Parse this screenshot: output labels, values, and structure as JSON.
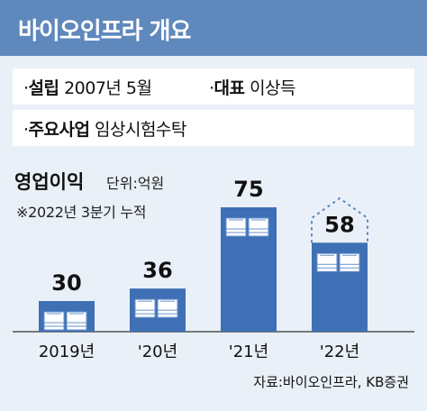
{
  "header": {
    "title": "바이오인프라 개요"
  },
  "info": {
    "founded_key": "설립",
    "founded_value": "2007년 5월",
    "ceo_key": "대표",
    "ceo_value": "이상득",
    "business_key": "주요사업",
    "business_value": "임상시험수탁"
  },
  "chart_data": {
    "type": "bar",
    "title": "영업이익",
    "unit": "단위:억원",
    "note": "※2022년 3분기 누적",
    "categories": [
      "2019년",
      "'20년",
      "'21년",
      "'22년"
    ],
    "values": [
      30,
      36,
      75,
      58
    ],
    "ylim": [
      0,
      75
    ],
    "grid": false,
    "legend": "none",
    "dashed_outline_category": "'22년",
    "dashed_outline_value": 75
  },
  "source": "자료:바이오인프라, KB증권",
  "colors": {
    "banner": "#5f88bd",
    "background": "#e9f0f7",
    "bar": "#3f70b5",
    "bar_light": "#6a93cc",
    "dashed": "#5a86c2"
  }
}
